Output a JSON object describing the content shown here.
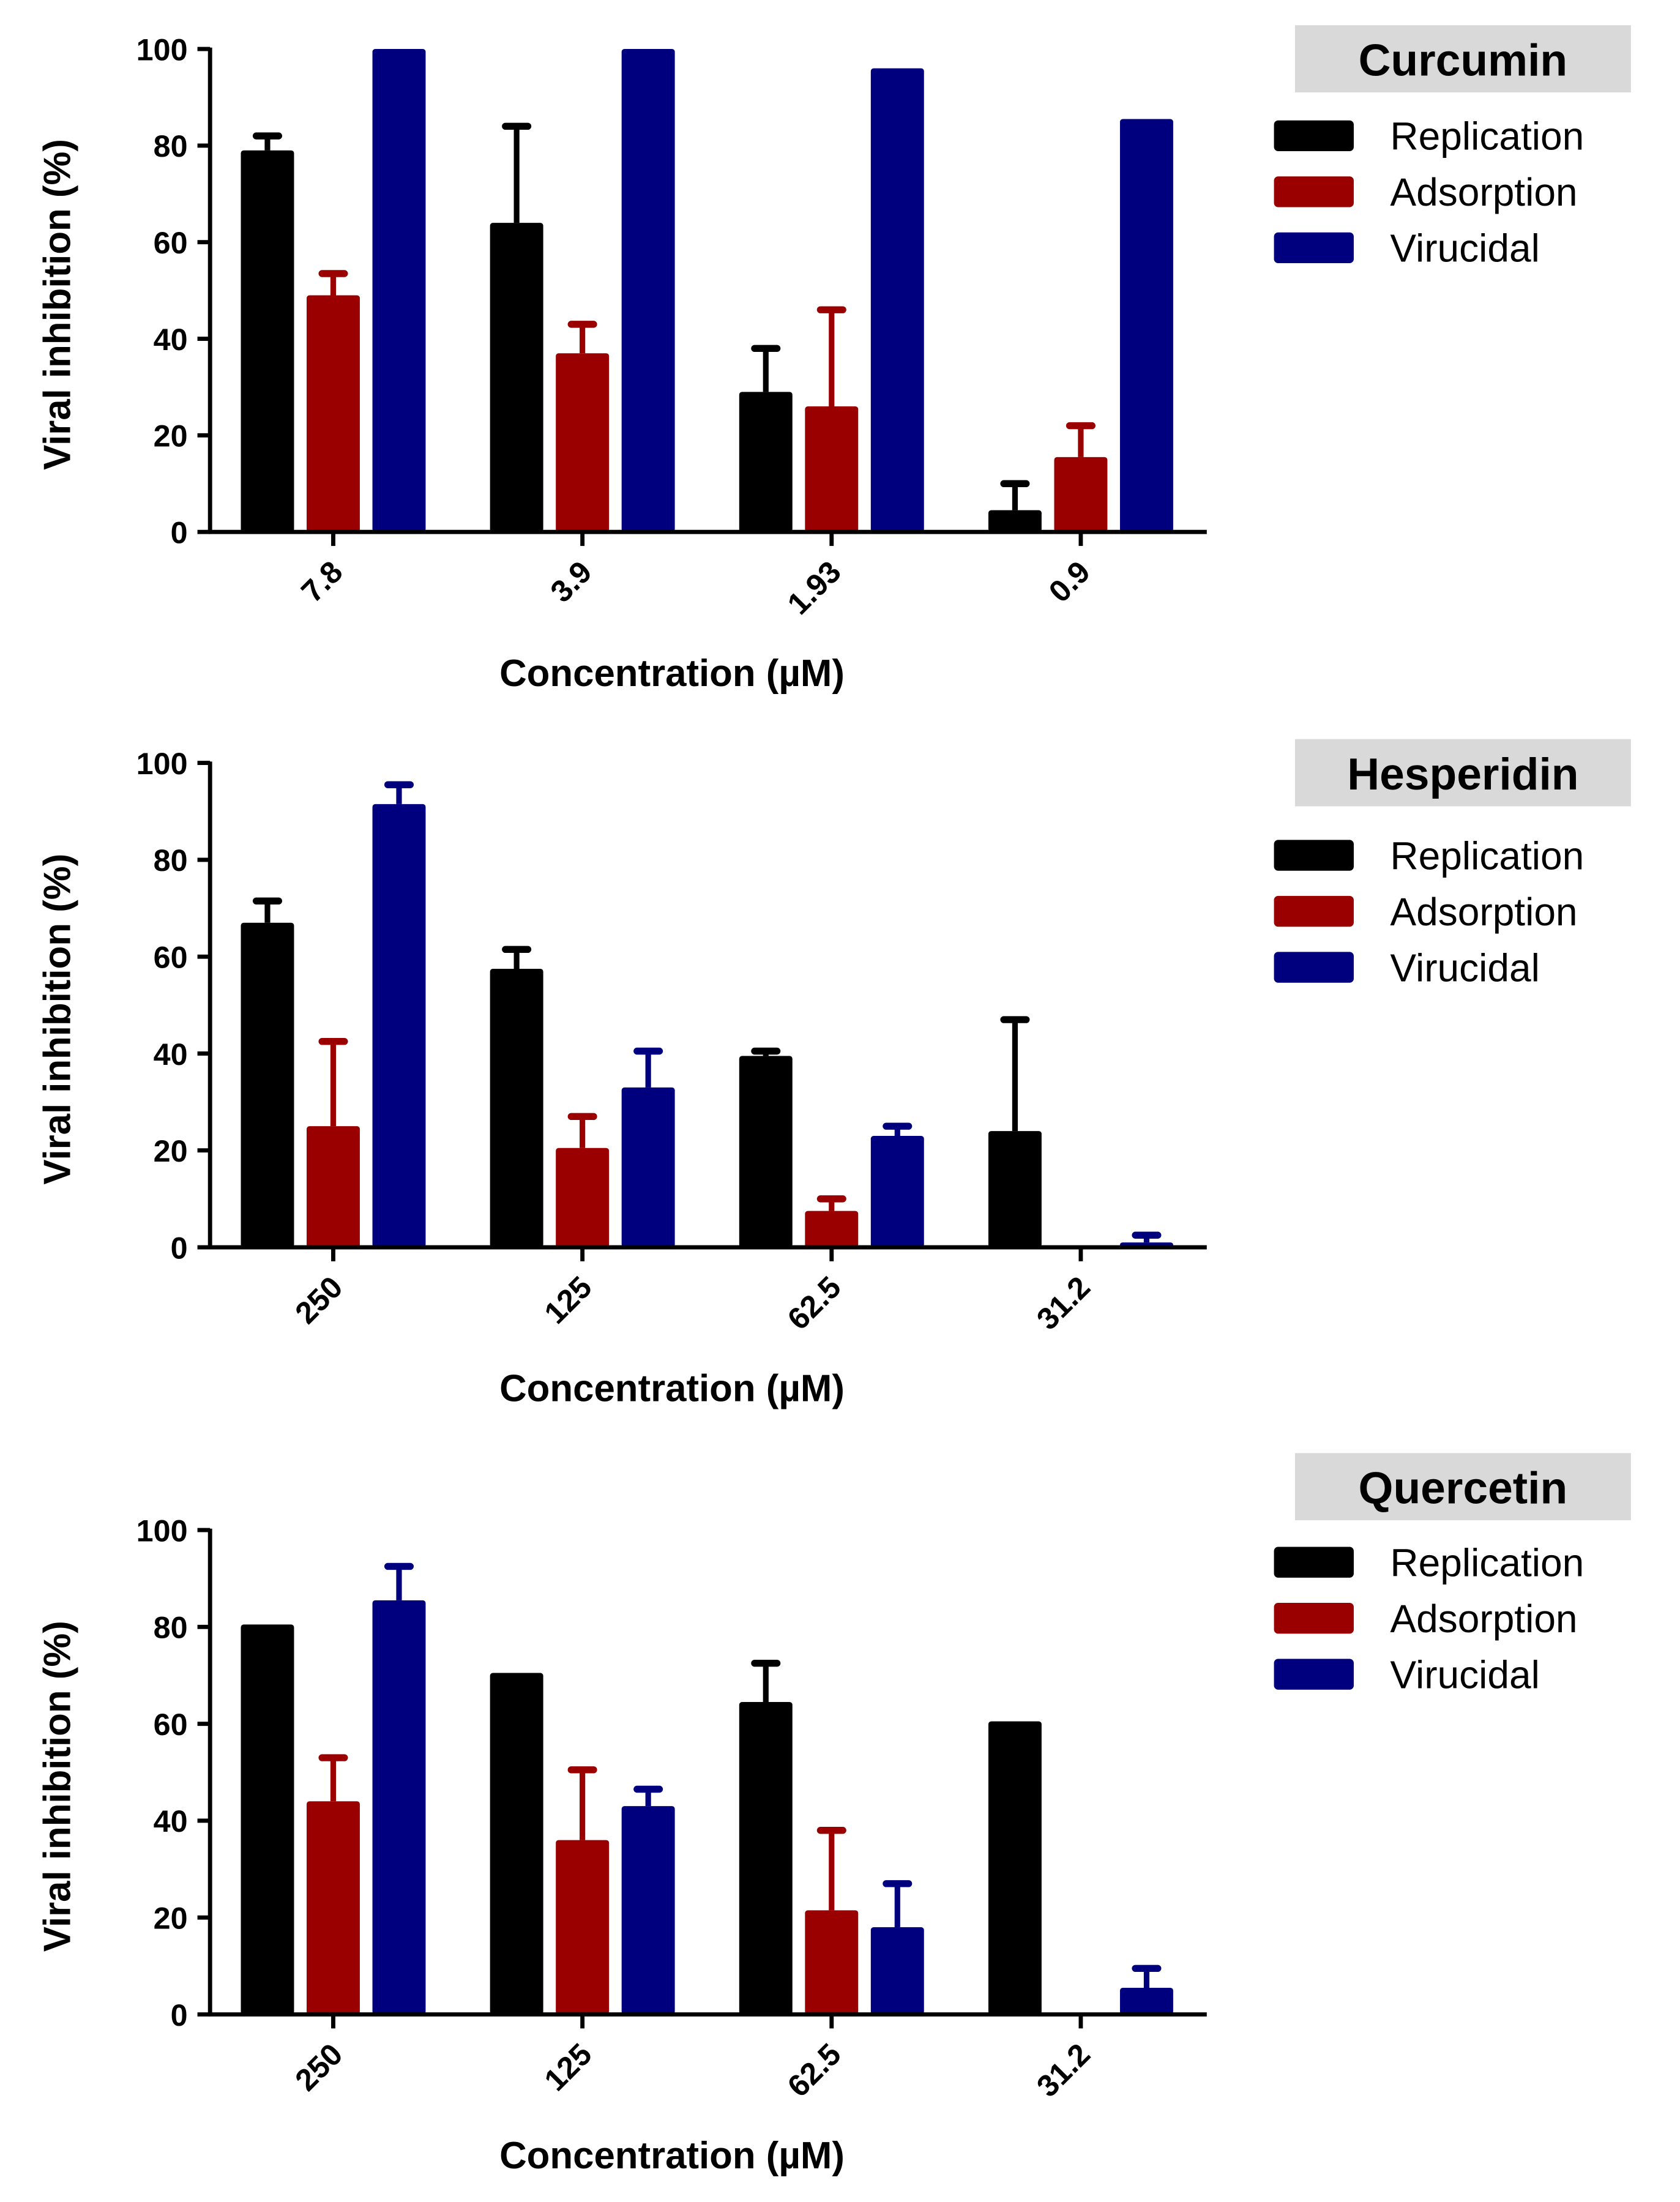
{
  "colors": {
    "Replication": "#000000",
    "Adsorption": "#9b0000",
    "Virucidal": "#00007f",
    "title_box": "#d9d9d9"
  },
  "chart_data": [
    {
      "type": "bar",
      "title": "Curcumin",
      "xlabel": "Concentration (µM)",
      "ylabel": "Viral inhibition  (%)",
      "ylim": [
        0,
        100
      ],
      "yticks": [
        "0",
        "20",
        "40",
        "60",
        "80",
        "100"
      ],
      "categories": [
        "7.8",
        "3.9",
        "1.93",
        "0.9"
      ],
      "legend_position": "top-right",
      "series": [
        {
          "name": "Replication",
          "values": [
            79,
            64,
            29,
            4.5
          ],
          "error_top": [
            82,
            84,
            38,
            10
          ]
        },
        {
          "name": "Adsorption",
          "values": [
            49,
            37,
            26,
            15.5
          ],
          "error_top": [
            53.5,
            43,
            46,
            22
          ]
        },
        {
          "name": "Virucidal",
          "values": [
            100,
            100,
            96,
            85.5
          ],
          "error_top": [
            null,
            null,
            null,
            null
          ]
        }
      ]
    },
    {
      "type": "bar",
      "title": "Hesperidin",
      "xlabel": "Concentration (µM)",
      "ylabel": "Viral inhibition  (%)",
      "ylim": [
        0,
        100
      ],
      "yticks": [
        "0",
        "20",
        "40",
        "60",
        "80",
        "100"
      ],
      "categories": [
        "250",
        "125",
        "62.5",
        "31.2"
      ],
      "legend_position": "top-right",
      "series": [
        {
          "name": "Replication",
          "values": [
            67,
            57.5,
            39.5,
            24
          ],
          "error_top": [
            71.5,
            61.5,
            40.5,
            47
          ]
        },
        {
          "name": "Adsorption",
          "values": [
            25,
            20.5,
            7.5,
            0
          ],
          "error_top": [
            42.5,
            27,
            10,
            null
          ]
        },
        {
          "name": "Virucidal",
          "values": [
            91.5,
            33,
            23,
            1
          ],
          "error_top": [
            95.5,
            40.5,
            25,
            2.5
          ]
        }
      ]
    },
    {
      "type": "bar",
      "title": "Quercetin",
      "xlabel": "Concentration (µM)",
      "ylabel": "Viral inhibition  (%)",
      "ylim": [
        0,
        100
      ],
      "yticks": [
        "0",
        "20",
        "40",
        "60",
        "80",
        "100"
      ],
      "categories": [
        "250",
        "125",
        "62.5",
        "31.2"
      ],
      "legend_position": "top-right",
      "series": [
        {
          "name": "Replication",
          "values": [
            80.5,
            70.5,
            64.5,
            60.5
          ],
          "error_top": [
            null,
            null,
            72.5,
            null
          ]
        },
        {
          "name": "Adsorption",
          "values": [
            44,
            36,
            21.5,
            0
          ],
          "error_top": [
            53,
            50.5,
            38,
            null
          ]
        },
        {
          "name": "Virucidal",
          "values": [
            85.5,
            43,
            18,
            5.5
          ],
          "error_top": [
            92.5,
            46.5,
            27,
            9.5
          ]
        }
      ]
    }
  ]
}
